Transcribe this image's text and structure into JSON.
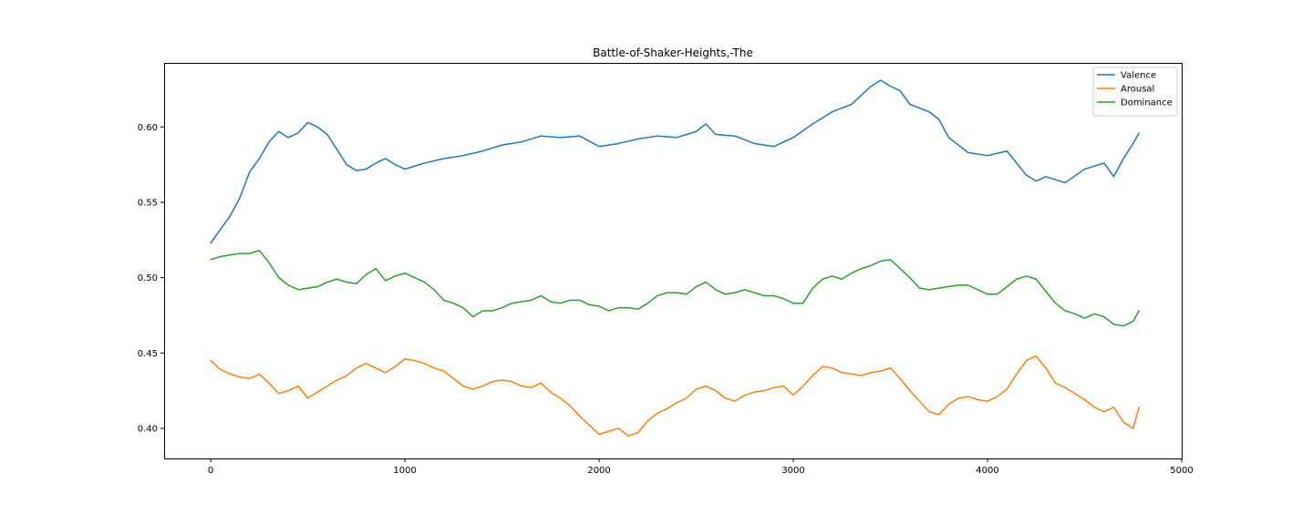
{
  "chart_data": {
    "type": "line",
    "title": "Battle-of-Shaker-Heights,-The",
    "xlabel": "",
    "ylabel": "",
    "xlim": [
      -240,
      5000
    ],
    "ylim": [
      0.38,
      0.6425
    ],
    "xticks": [
      0,
      1000,
      2000,
      3000,
      4000,
      5000
    ],
    "xtick_labels": [
      "0",
      "1000",
      "2000",
      "3000",
      "4000",
      "5000"
    ],
    "yticks": [
      0.4,
      0.45,
      0.5,
      0.55,
      0.6
    ],
    "ytick_labels": [
      "0.40",
      "0.45",
      "0.50",
      "0.55",
      "0.60"
    ],
    "grid": false,
    "legend_position": "upper right",
    "series": [
      {
        "name": "Valence",
        "color": "#1f77b4",
        "x": [
          0,
          100,
          150,
          200,
          250,
          300,
          350,
          400,
          450,
          500,
          550,
          600,
          650,
          700,
          750,
          800,
          850,
          900,
          950,
          1000,
          1050,
          1100,
          1200,
          1300,
          1400,
          1500,
          1600,
          1700,
          1800,
          1900,
          2000,
          2100,
          2200,
          2300,
          2400,
          2500,
          2550,
          2600,
          2700,
          2800,
          2900,
          3000,
          3100,
          3200,
          3300,
          3400,
          3450,
          3500,
          3550,
          3600,
          3700,
          3750,
          3800,
          3900,
          4000,
          4100,
          4200,
          4250,
          4300,
          4400,
          4500,
          4600,
          4650,
          4700,
          4750,
          4780
        ],
        "y": [
          0.523,
          0.541,
          0.553,
          0.57,
          0.579,
          0.59,
          0.597,
          0.593,
          0.596,
          0.603,
          0.6,
          0.595,
          0.585,
          0.575,
          0.571,
          0.572,
          0.576,
          0.579,
          0.575,
          0.572,
          0.574,
          0.576,
          0.579,
          0.581,
          0.584,
          0.588,
          0.59,
          0.594,
          0.593,
          0.594,
          0.587,
          0.589,
          0.592,
          0.594,
          0.593,
          0.597,
          0.602,
          0.595,
          0.594,
          0.589,
          0.587,
          0.593,
          0.602,
          0.61,
          0.615,
          0.627,
          0.631,
          0.627,
          0.624,
          0.615,
          0.61,
          0.605,
          0.593,
          0.583,
          0.581,
          0.584,
          0.568,
          0.564,
          0.567,
          0.563,
          0.572,
          0.576,
          0.567,
          0.579,
          0.589,
          0.596
        ]
      },
      {
        "name": "Arousal",
        "color": "#ff7f0e",
        "x": [
          0,
          50,
          100,
          150,
          200,
          250,
          300,
          350,
          400,
          450,
          500,
          550,
          600,
          650,
          700,
          750,
          800,
          850,
          900,
          950,
          1000,
          1050,
          1100,
          1150,
          1200,
          1250,
          1300,
          1350,
          1400,
          1450,
          1500,
          1550,
          1600,
          1650,
          1700,
          1750,
          1800,
          1850,
          1900,
          1950,
          2000,
          2050,
          2100,
          2150,
          2200,
          2250,
          2300,
          2350,
          2400,
          2450,
          2500,
          2550,
          2600,
          2650,
          2700,
          2750,
          2800,
          2850,
          2900,
          2950,
          3000,
          3050,
          3100,
          3150,
          3200,
          3250,
          3300,
          3350,
          3400,
          3450,
          3500,
          3550,
          3600,
          3650,
          3700,
          3750,
          3800,
          3850,
          3900,
          3950,
          4000,
          4050,
          4100,
          4150,
          4200,
          4250,
          4300,
          4350,
          4400,
          4450,
          4500,
          4550,
          4600,
          4650,
          4700,
          4750,
          4780
        ],
        "y": [
          0.445,
          0.439,
          0.436,
          0.434,
          0.433,
          0.436,
          0.43,
          0.423,
          0.425,
          0.428,
          0.42,
          0.424,
          0.428,
          0.432,
          0.435,
          0.44,
          0.443,
          0.44,
          0.437,
          0.441,
          0.446,
          0.445,
          0.443,
          0.44,
          0.438,
          0.433,
          0.428,
          0.426,
          0.428,
          0.431,
          0.432,
          0.431,
          0.428,
          0.427,
          0.43,
          0.424,
          0.42,
          0.415,
          0.408,
          0.402,
          0.396,
          0.398,
          0.4,
          0.395,
          0.397,
          0.405,
          0.41,
          0.413,
          0.417,
          0.42,
          0.426,
          0.428,
          0.425,
          0.42,
          0.418,
          0.422,
          0.424,
          0.425,
          0.427,
          0.428,
          0.422,
          0.428,
          0.435,
          0.441,
          0.44,
          0.437,
          0.436,
          0.435,
          0.437,
          0.438,
          0.44,
          0.433,
          0.425,
          0.418,
          0.411,
          0.409,
          0.416,
          0.42,
          0.421,
          0.419,
          0.418,
          0.421,
          0.426,
          0.436,
          0.445,
          0.448,
          0.44,
          0.43,
          0.427,
          0.423,
          0.419,
          0.414,
          0.411,
          0.414,
          0.404,
          0.4,
          0.414
        ]
      },
      {
        "name": "Dominance",
        "color": "#2ca02c",
        "x": [
          0,
          50,
          100,
          150,
          200,
          250,
          300,
          350,
          400,
          450,
          500,
          550,
          600,
          650,
          700,
          750,
          800,
          850,
          900,
          950,
          1000,
          1050,
          1100,
          1150,
          1200,
          1250,
          1300,
          1350,
          1400,
          1450,
          1500,
          1550,
          1600,
          1650,
          1700,
          1750,
          1800,
          1850,
          1900,
          1950,
          2000,
          2050,
          2100,
          2150,
          2200,
          2250,
          2300,
          2350,
          2400,
          2450,
          2500,
          2550,
          2600,
          2650,
          2700,
          2750,
          2800,
          2850,
          2900,
          2950,
          3000,
          3050,
          3100,
          3150,
          3200,
          3250,
          3300,
          3350,
          3400,
          3450,
          3500,
          3550,
          3600,
          3650,
          3700,
          3750,
          3800,
          3850,
          3900,
          3950,
          4000,
          4050,
          4100,
          4150,
          4200,
          4250,
          4300,
          4350,
          4400,
          4450,
          4500,
          4550,
          4600,
          4650,
          4700,
          4750,
          4780
        ],
        "y": [
          0.512,
          0.514,
          0.515,
          0.516,
          0.516,
          0.518,
          0.51,
          0.5,
          0.495,
          0.492,
          0.493,
          0.494,
          0.497,
          0.499,
          0.497,
          0.496,
          0.502,
          0.506,
          0.498,
          0.501,
          0.503,
          0.5,
          0.497,
          0.492,
          0.485,
          0.483,
          0.48,
          0.474,
          0.478,
          0.478,
          0.48,
          0.483,
          0.484,
          0.485,
          0.488,
          0.484,
          0.483,
          0.485,
          0.485,
          0.482,
          0.481,
          0.478,
          0.48,
          0.48,
          0.479,
          0.483,
          0.488,
          0.49,
          0.49,
          0.489,
          0.494,
          0.497,
          0.492,
          0.489,
          0.49,
          0.492,
          0.49,
          0.488,
          0.488,
          0.486,
          0.483,
          0.483,
          0.493,
          0.499,
          0.501,
          0.499,
          0.503,
          0.506,
          0.508,
          0.511,
          0.512,
          0.506,
          0.5,
          0.493,
          0.492,
          0.493,
          0.494,
          0.495,
          0.495,
          0.492,
          0.489,
          0.489,
          0.494,
          0.499,
          0.501,
          0.499,
          0.491,
          0.483,
          0.478,
          0.476,
          0.473,
          0.476,
          0.474,
          0.469,
          0.468,
          0.471,
          0.478
        ]
      }
    ]
  }
}
